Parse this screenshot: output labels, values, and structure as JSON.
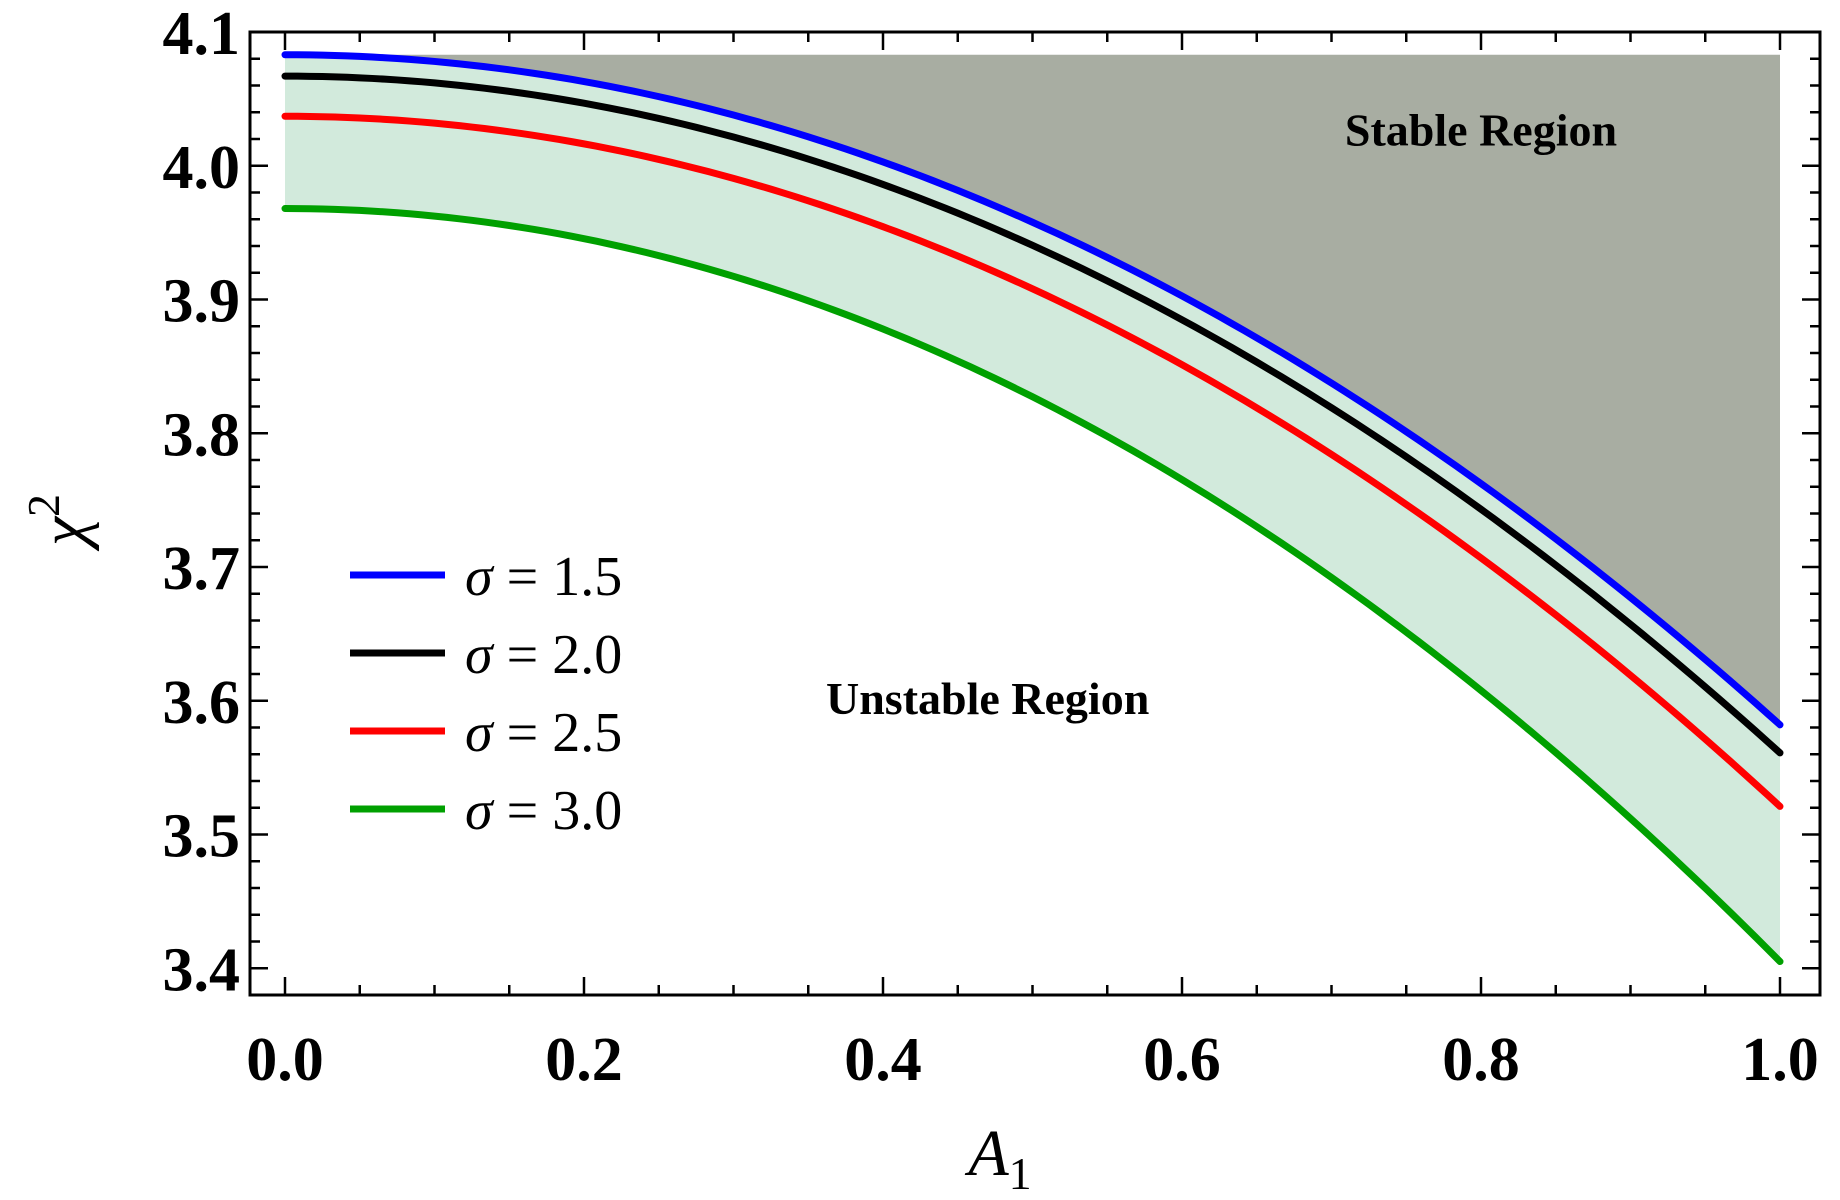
{
  "chart_data": {
    "type": "line",
    "xlabel": "A",
    "xlabel_sub": "1",
    "ylabel": "χ",
    "ylabel_sup": "2",
    "xlim": [
      0.0,
      1.0
    ],
    "ylim": [
      3.38,
      4.1
    ],
    "x_ticks": [
      0.0,
      0.2,
      0.4,
      0.6,
      0.8,
      1.0
    ],
    "x_tick_labels": [
      "0.0",
      "0.2",
      "0.4",
      "0.6",
      "0.8",
      "1.0"
    ],
    "y_ticks": [
      3.4,
      3.5,
      3.6,
      3.7,
      3.8,
      3.9,
      4.0,
      4.1
    ],
    "y_tick_labels": [
      "3.4",
      "3.5",
      "3.6",
      "3.7",
      "3.8",
      "3.9",
      "4.0",
      "4.1"
    ],
    "x_minor_step": 0.05,
    "y_minor_step": 0.02,
    "legend_position": "middle-left",
    "series": [
      {
        "name": "σ = 1.5",
        "sigma_label": "σ",
        "value_label": "1.5",
        "color": "#0000ff",
        "y_at_0": 4.083,
        "y_at_1": 3.582
      },
      {
        "name": "σ = 2.0",
        "sigma_label": "σ",
        "value_label": "2.0",
        "color": "#000000",
        "y_at_0": 4.067,
        "y_at_1": 3.561
      },
      {
        "name": "σ = 2.5",
        "sigma_label": "σ",
        "value_label": "2.5",
        "color": "#ff0000",
        "y_at_0": 4.037,
        "y_at_1": 3.521
      },
      {
        "name": "σ = 3.0",
        "sigma_label": "σ",
        "value_label": "3.0",
        "color": "#00a000",
        "y_at_0": 3.968,
        "y_at_1": 3.405
      }
    ],
    "regions": {
      "stable": {
        "label": "Stable Region",
        "color": "#a8ada2",
        "top": 4.083
      },
      "band": {
        "color": "#d2eadc"
      }
    },
    "annotations": [
      {
        "text": "Stable Region",
        "x": 0.8,
        "y": 4.015
      },
      {
        "text": "Unstable Region",
        "x": 0.47,
        "y": 3.59
      }
    ]
  }
}
